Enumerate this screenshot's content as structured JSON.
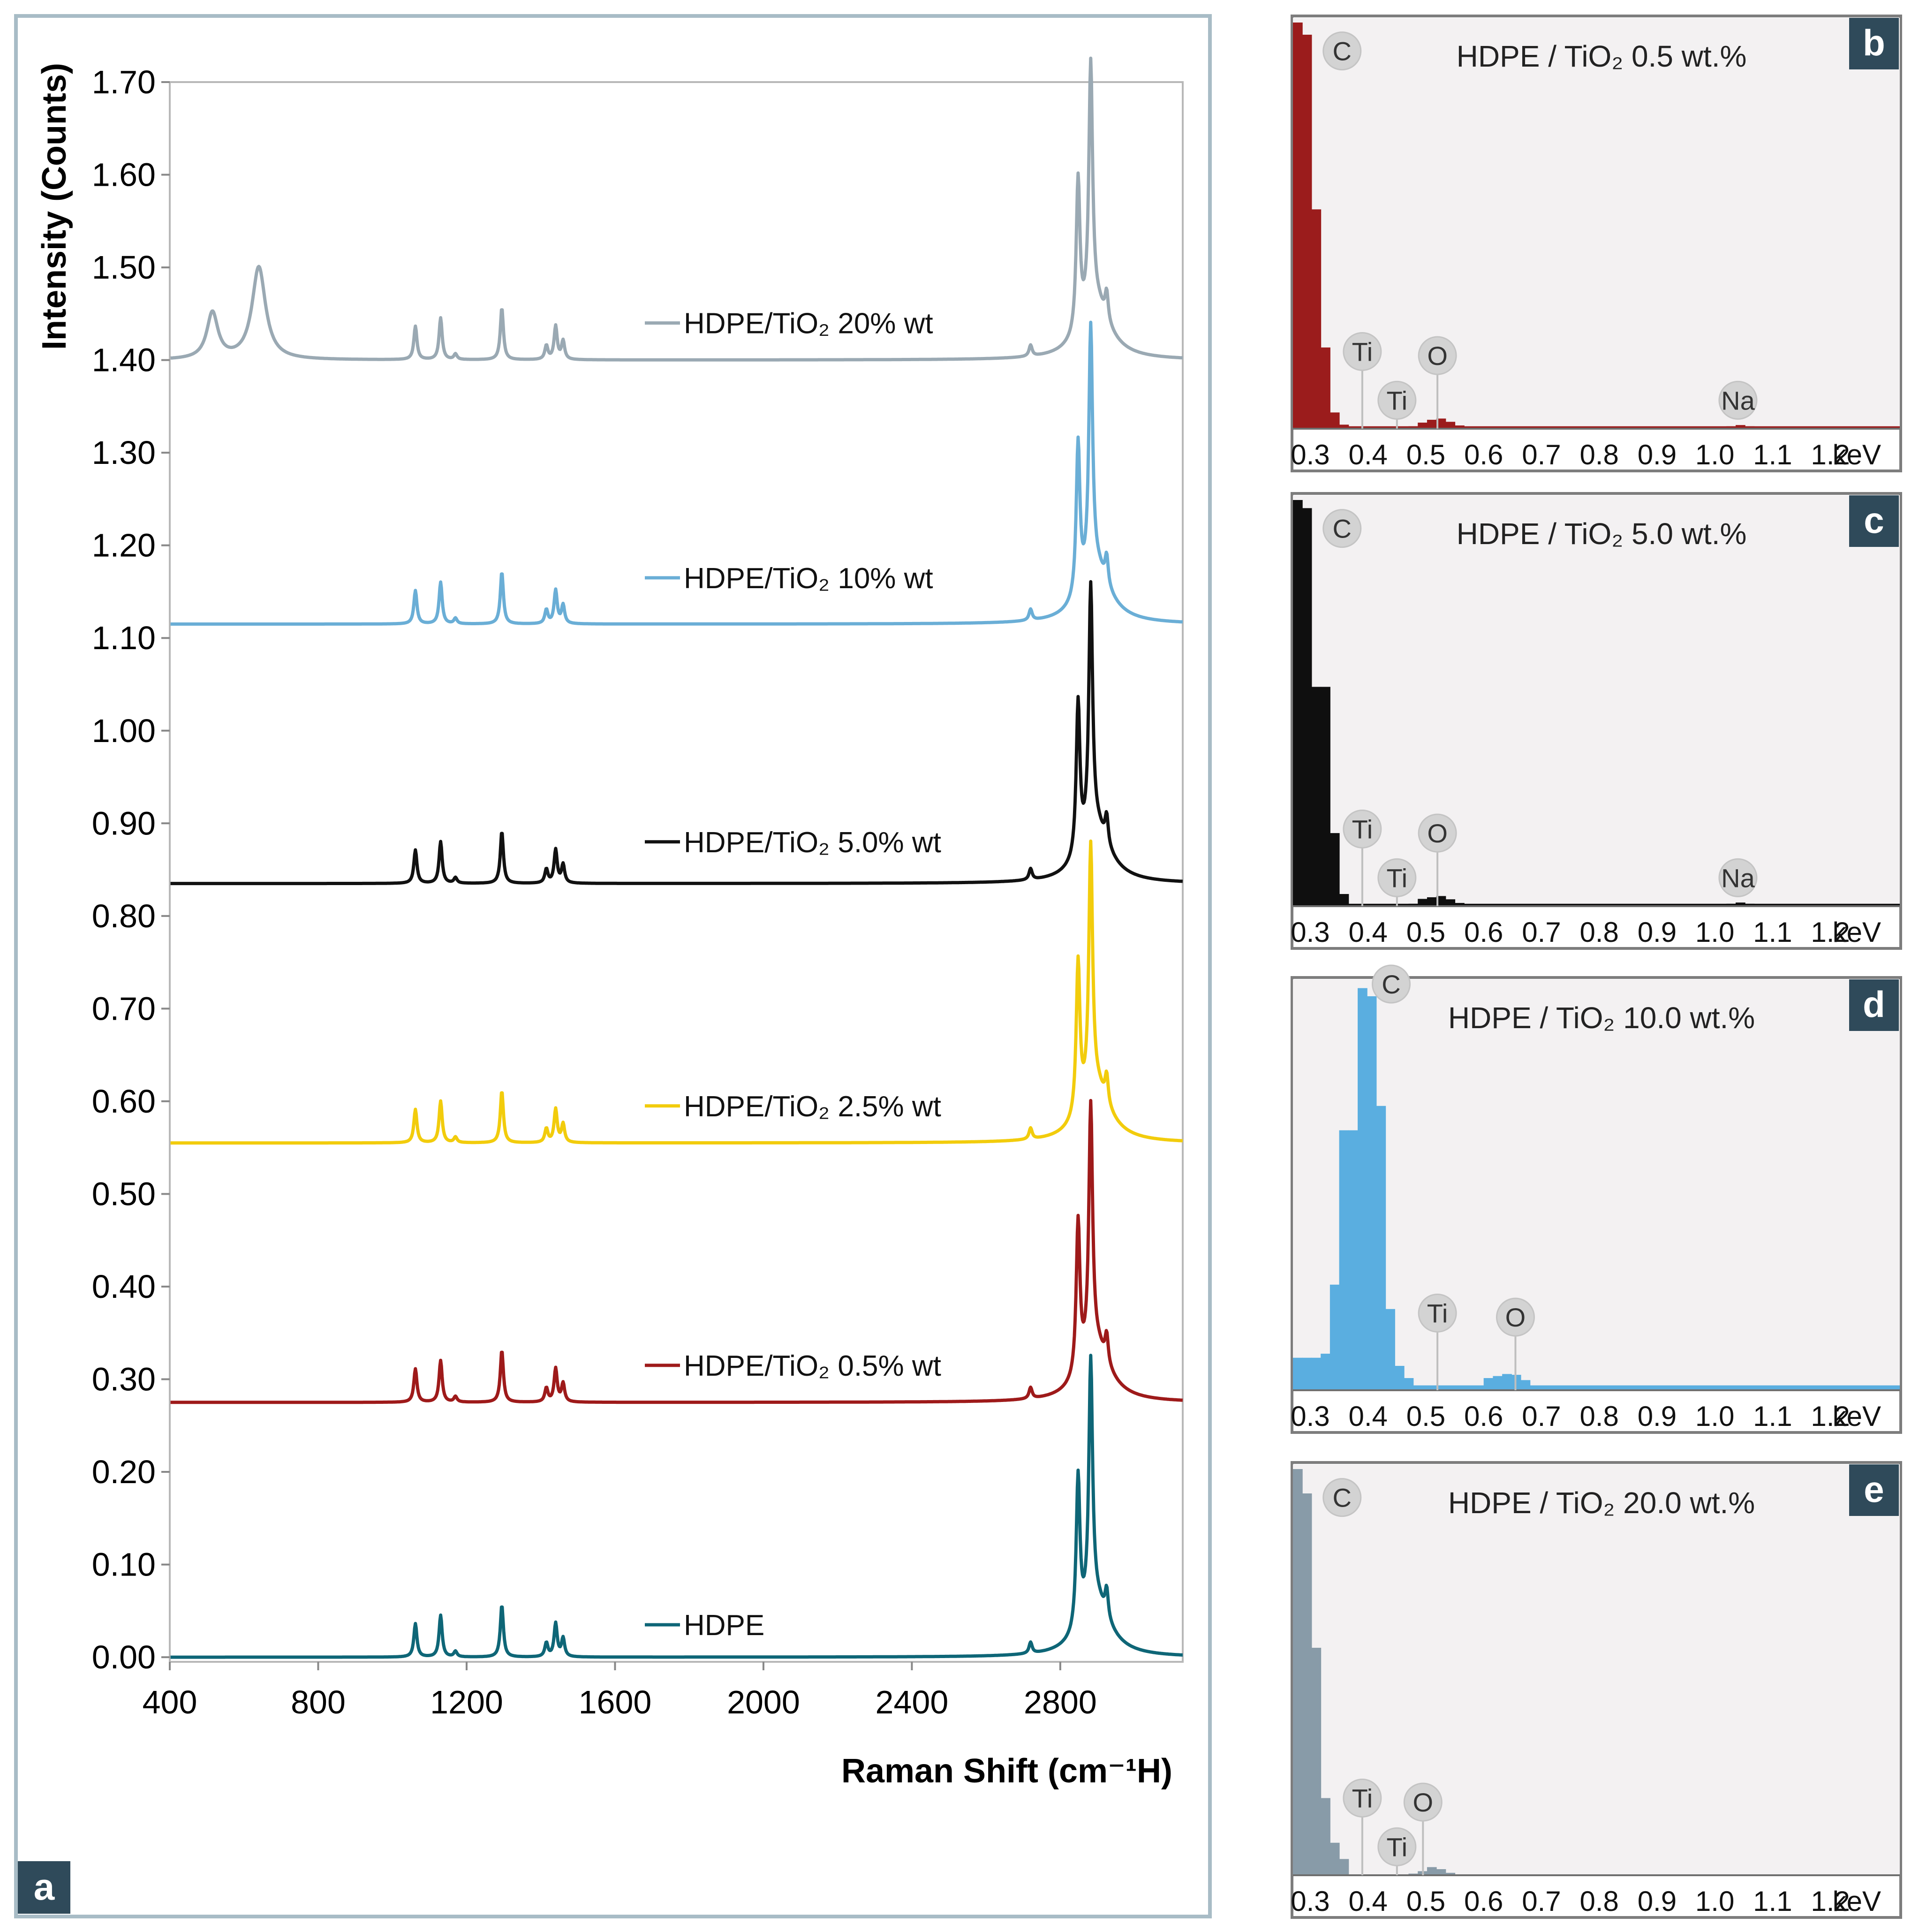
{
  "chart_data": [
    {
      "panel": "a",
      "type": "line",
      "title": "",
      "xlabel": "Raman Shift (cm⁻¹H)",
      "ylabel": "Intensity (Counts)",
      "xlim": [
        400,
        3130
      ],
      "ylim": [
        -0.005,
        1.7
      ],
      "xticks": [
        "400",
        "800",
        "1200",
        "1600",
        "2000",
        "2400",
        "2800"
      ],
      "yticks": [
        "0.00",
        "0.10",
        "0.20",
        "0.30",
        "0.40",
        "0.50",
        "0.60",
        "0.70",
        "0.80",
        "0.90",
        "1.00",
        "1.10",
        "1.20",
        "1.30",
        "1.40",
        "1.50",
        "1.60",
        "1.70"
      ],
      "grid": false,
      "legend": "inline labels beside each trace",
      "peak_positions": [
        1062,
        1130,
        1170,
        1295,
        1415,
        1440,
        1460,
        2720,
        2848,
        2882,
        2925
      ],
      "peak_heights_hdpe": [
        0.036,
        0.045,
        0.006,
        0.056,
        0.015,
        0.036,
        0.02,
        0.012,
        0.165,
        0.265,
        0.03
      ],
      "series": [
        {
          "name": "HDPE",
          "baseline": 0.0,
          "scale": 1.0,
          "color": "#0e6677",
          "label_y": 0.035,
          "tio2_peaks": []
        },
        {
          "name": "HDPE/TiO₂ 0.5% wt",
          "baseline": 0.275,
          "scale": 1.0,
          "color": "#9e1a1a",
          "label_y": 0.315,
          "tio2_peaks": []
        },
        {
          "name": "HDPE/TiO₂ 2.5% wt",
          "baseline": 0.555,
          "scale": 1.0,
          "color": "#f2cc0c",
          "label_y": 0.595,
          "tio2_peaks": []
        },
        {
          "name": "HDPE/TiO₂ 5.0% wt",
          "baseline": 0.835,
          "scale": 1.0,
          "color": "#111111",
          "label_y": 0.88,
          "tio2_peaks": []
        },
        {
          "name": "HDPE/TiO₂ 10% wt",
          "baseline": 1.115,
          "scale": 1.0,
          "color": "#6aaed6",
          "label_y": 1.165,
          "tio2_peaks": []
        },
        {
          "name": "HDPE/TiO₂ 20% wt",
          "baseline": 1.4,
          "scale": 1.0,
          "color": "#9aa9b3",
          "label_y": 1.44,
          "tio2_peaks": [
            {
              "x": 515,
              "h": 0.05,
              "w": 18
            },
            {
              "x": 640,
              "h": 0.1,
              "w": 22
            }
          ]
        }
      ]
    },
    {
      "panel": "b",
      "type": "bar",
      "title": "HDPE / TiO₂ 0.5 wt.%",
      "xlabel": "keV",
      "xticks": [
        "0.3",
        "0.4",
        "0.5",
        "0.6",
        "0.7",
        "0.8",
        "0.9",
        "1.0",
        "1.1",
        "1.2"
      ],
      "xlim": [
        0.27,
        1.32
      ],
      "ylim": [
        0,
        1
      ],
      "color": "#9b1c1c",
      "bins": [
        {
          "x": 0.27,
          "v": 1.0
        },
        {
          "x": 0.286,
          "v": 0.97
        },
        {
          "x": 0.302,
          "v": 0.54
        },
        {
          "x": 0.318,
          "v": 0.2
        },
        {
          "x": 0.334,
          "v": 0.04
        },
        {
          "x": 0.35,
          "v": 0.01
        },
        {
          "x": 0.47,
          "v": 0.006
        },
        {
          "x": 0.486,
          "v": 0.015
        },
        {
          "x": 0.502,
          "v": 0.022
        },
        {
          "x": 0.518,
          "v": 0.025
        },
        {
          "x": 0.534,
          "v": 0.017
        },
        {
          "x": 0.55,
          "v": 0.008
        },
        {
          "x": 1.02,
          "v": 0.006
        },
        {
          "x": 1.036,
          "v": 0.009
        },
        {
          "x": 1.052,
          "v": 0.006
        }
      ],
      "floor": 0.006,
      "markers": [
        {
          "label": "C",
          "x": 0.355,
          "y": 0.93
        },
        {
          "label": "Ti",
          "x": 0.39,
          "y": 0.19
        },
        {
          "label": "O",
          "x": 0.52,
          "y": 0.18
        },
        {
          "label": "Ti",
          "x": 0.45,
          "y": 0.07
        },
        {
          "label": "Na",
          "x": 1.04,
          "y": 0.07
        }
      ]
    },
    {
      "panel": "c",
      "type": "bar",
      "title": "HDPE / TiO₂ 5.0 wt.%",
      "xlabel": "keV",
      "xticks": [
        "0.3",
        "0.4",
        "0.5",
        "0.6",
        "0.7",
        "0.8",
        "0.9",
        "1.0",
        "1.1",
        "1.2"
      ],
      "xlim": [
        0.27,
        1.32
      ],
      "ylim": [
        0,
        1
      ],
      "color": "#0f0f0f",
      "bins": [
        {
          "x": 0.27,
          "v": 1.0
        },
        {
          "x": 0.286,
          "v": 0.98
        },
        {
          "x": 0.302,
          "v": 0.54
        },
        {
          "x": 0.318,
          "v": 0.54
        },
        {
          "x": 0.334,
          "v": 0.18
        },
        {
          "x": 0.35,
          "v": 0.03
        },
        {
          "x": 0.47,
          "v": 0.006
        },
        {
          "x": 0.486,
          "v": 0.018
        },
        {
          "x": 0.502,
          "v": 0.022
        },
        {
          "x": 0.518,
          "v": 0.025
        },
        {
          "x": 0.534,
          "v": 0.017
        },
        {
          "x": 0.55,
          "v": 0.008
        },
        {
          "x": 1.02,
          "v": 0.006
        },
        {
          "x": 1.036,
          "v": 0.009
        },
        {
          "x": 1.052,
          "v": 0.006
        }
      ],
      "floor": 0.006,
      "markers": [
        {
          "label": "C",
          "x": 0.355,
          "y": 0.93
        },
        {
          "label": "Ti",
          "x": 0.39,
          "y": 0.19
        },
        {
          "label": "O",
          "x": 0.52,
          "y": 0.18
        },
        {
          "label": "Ti",
          "x": 0.45,
          "y": 0.07
        },
        {
          "label": "Na",
          "x": 1.04,
          "y": 0.07
        }
      ]
    },
    {
      "panel": "d",
      "type": "bar",
      "title": "HDPE / TiO₂ 10.0 wt.%",
      "xlabel": "keV",
      "xticks": [
        "0.3",
        "0.4",
        "0.5",
        "0.6",
        "0.7",
        "0.8",
        "0.9",
        "1.0",
        "1.1",
        "1.2"
      ],
      "xlim": [
        0.27,
        1.32
      ],
      "ylim": [
        0,
        1
      ],
      "color": "#5aaee0",
      "bins": [
        {
          "x": 0.27,
          "v": 0.08
        },
        {
          "x": 0.286,
          "v": 0.08
        },
        {
          "x": 0.302,
          "v": 0.08
        },
        {
          "x": 0.318,
          "v": 0.09
        },
        {
          "x": 0.334,
          "v": 0.26
        },
        {
          "x": 0.35,
          "v": 0.64
        },
        {
          "x": 0.366,
          "v": 0.64
        },
        {
          "x": 0.382,
          "v": 0.99
        },
        {
          "x": 0.398,
          "v": 0.97
        },
        {
          "x": 0.414,
          "v": 0.7
        },
        {
          "x": 0.43,
          "v": 0.2
        },
        {
          "x": 0.446,
          "v": 0.06
        },
        {
          "x": 0.462,
          "v": 0.03
        },
        {
          "x": 0.6,
          "v": 0.03
        },
        {
          "x": 0.616,
          "v": 0.035
        },
        {
          "x": 0.632,
          "v": 0.04
        },
        {
          "x": 0.648,
          "v": 0.038
        },
        {
          "x": 0.664,
          "v": 0.025
        }
      ],
      "floor": 0.012,
      "markers": [
        {
          "label": "C",
          "x": 0.44,
          "y": 1.0
        },
        {
          "label": "Ti",
          "x": 0.52,
          "y": 0.19
        },
        {
          "label": "O",
          "x": 0.655,
          "y": 0.18
        }
      ]
    },
    {
      "panel": "e",
      "type": "bar",
      "title": "HDPE / TiO₂ 20.0 wt.%",
      "xlabel": "keV",
      "xticks": [
        "0.3",
        "0.4",
        "0.5",
        "0.6",
        "0.7",
        "0.8",
        "0.9",
        "1.0",
        "1.1",
        "1.2"
      ],
      "xlim": [
        0.27,
        1.32
      ],
      "ylim": [
        0,
        1
      ],
      "color": "#889ba8",
      "bins": [
        {
          "x": 0.27,
          "v": 1.0
        },
        {
          "x": 0.286,
          "v": 0.94
        },
        {
          "x": 0.302,
          "v": 0.56
        },
        {
          "x": 0.318,
          "v": 0.19
        },
        {
          "x": 0.334,
          "v": 0.08
        },
        {
          "x": 0.35,
          "v": 0.04
        },
        {
          "x": 0.47,
          "v": 0.004
        },
        {
          "x": 0.486,
          "v": 0.01
        },
        {
          "x": 0.502,
          "v": 0.02
        },
        {
          "x": 0.518,
          "v": 0.015
        },
        {
          "x": 0.534,
          "v": 0.006
        }
      ],
      "floor": 0.0,
      "markers": [
        {
          "label": "C",
          "x": 0.355,
          "y": 0.93
        },
        {
          "label": "Ti",
          "x": 0.39,
          "y": 0.19
        },
        {
          "label": "O",
          "x": 0.495,
          "y": 0.18
        },
        {
          "label": "Ti",
          "x": 0.45,
          "y": 0.07
        }
      ]
    }
  ],
  "panel_labels": {
    "a": "a",
    "b": "b",
    "c": "c",
    "d": "d",
    "e": "e"
  },
  "colors": {
    "frame": "#a8bcc6",
    "panel_bg": "#f3f1f2",
    "badge": "#2f4a5a",
    "marker_fill": "#d3d3d3",
    "marker_line": "#bfbfbf"
  }
}
